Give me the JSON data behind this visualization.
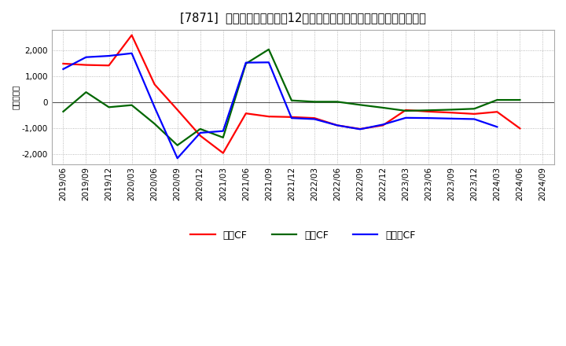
{
  "title": "[7871]  キャッシュフローの12か月移動合計の対前年同期増減額の推移",
  "ylabel": "（百万円）",
  "background_color": "#ffffff",
  "grid_color": "#aaaaaa",
  "x_labels": [
    "2019/06",
    "2019/09",
    "2019/12",
    "2020/03",
    "2020/06",
    "2020/09",
    "2020/12",
    "2021/03",
    "2021/06",
    "2021/09",
    "2021/12",
    "2022/03",
    "2022/06",
    "2022/09",
    "2022/12",
    "2023/03",
    "2023/06",
    "2023/09",
    "2023/12",
    "2024/03",
    "2024/06",
    "2024/09"
  ],
  "operating_cf": [
    1500,
    1450,
    1430,
    2600,
    700,
    -280,
    -1280,
    -1950,
    -420,
    -540,
    -560,
    -600,
    -880,
    -1020,
    -880,
    -290,
    -350,
    -390,
    -440,
    -360,
    -1000,
    null
  ],
  "investing_cf": [
    -350,
    400,
    -180,
    -100,
    -820,
    -1650,
    -1020,
    -1350,
    1500,
    2050,
    80,
    30,
    30,
    -90,
    -200,
    -320,
    -300,
    -275,
    -240,
    100,
    100,
    null
  ],
  "free_cf": [
    1290,
    1750,
    1800,
    1900,
    -180,
    -2150,
    -1170,
    -1100,
    1540,
    1550,
    -600,
    -640,
    -880,
    -1030,
    -850,
    -590,
    -600,
    -620,
    -640,
    -940,
    null,
    null
  ],
  "series_colors": {
    "operating": "#ff0000",
    "investing": "#006600",
    "free": "#0000ff"
  },
  "series_labels": {
    "operating": "営業CF",
    "investing": "投資CF",
    "free": "フリーCF"
  },
  "ylim": [
    -2400,
    2800
  ],
  "yticks": [
    -2000,
    -1000,
    0,
    1000,
    2000
  ],
  "title_fontsize": 10.5,
  "axis_fontsize": 7.5,
  "legend_fontsize": 9,
  "linewidth": 1.6
}
